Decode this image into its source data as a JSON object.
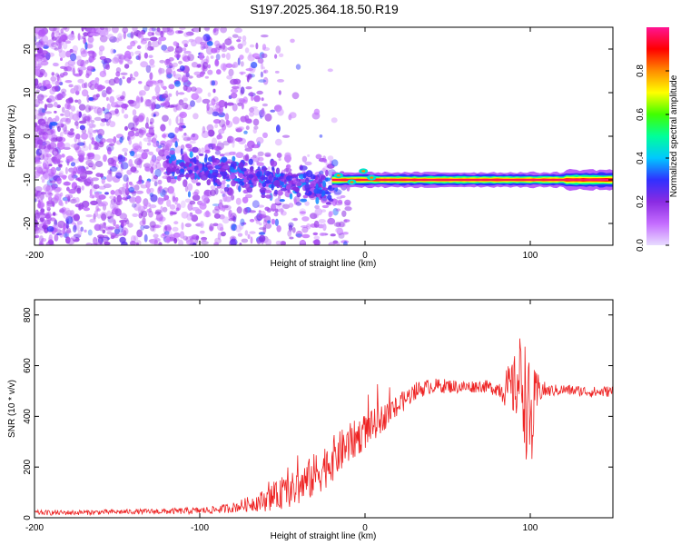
{
  "title": "S197.2025.364.18.50.R19",
  "chart_data": [
    {
      "type": "heatmap",
      "name": "spectrogram",
      "xlabel": "Height of straight line (km)",
      "ylabel": "Frequency (Hz)",
      "xlim": [
        -200,
        150
      ],
      "ylim": [
        -25,
        25
      ],
      "xticks": [
        -200,
        -100,
        0,
        100
      ],
      "xtick_labels": [
        "-200",
        "-100",
        "0",
        "100"
      ],
      "yticks": [
        -20,
        -10,
        0,
        10,
        20
      ],
      "ytick_labels": [
        "-20",
        "-10",
        "0",
        "10",
        "20"
      ],
      "colorbar": {
        "label": "Normalized spectral amplitude",
        "range": [
          0,
          1
        ],
        "ticks": [
          0.0,
          0.2,
          0.4,
          0.6,
          0.8
        ],
        "tick_labels": [
          "0.0",
          "0.2",
          "0.4",
          "0.6",
          "0.8"
        ],
        "colors": [
          "#e8dcff",
          "#c46cff",
          "#8a2be2",
          "#3030ff",
          "#00c8ff",
          "#00ff9a",
          "#40ff00",
          "#ffff00",
          "#ff8c00",
          "#ff0000",
          "#ff1493"
        ]
      },
      "features": [
        {
          "name": "carrier line",
          "x_range": [
            -20,
            150
          ],
          "frequency": -10,
          "amplitude": 1.0
        },
        {
          "name": "noise cloud",
          "x_range": [
            -200,
            -20
          ],
          "frequency_range": [
            -25,
            25
          ],
          "amplitude": 0.15
        }
      ]
    },
    {
      "type": "line",
      "name": "snr",
      "xlabel": "Height of straight line (km)",
      "ylabel": "SNR (10 * v/v)",
      "xlim": [
        -200,
        150
      ],
      "ylim": [
        0,
        860
      ],
      "xticks": [
        -200,
        -100,
        0,
        100
      ],
      "xtick_labels": [
        "-200",
        "-100",
        "0",
        "100"
      ],
      "yticks": [
        0,
        200,
        400,
        600,
        800
      ],
      "ytick_labels": [
        "0",
        "200",
        "400",
        "600",
        "800"
      ],
      "color": "#ee2222",
      "x": [
        -200,
        -180,
        -160,
        -140,
        -120,
        -100,
        -90,
        -80,
        -70,
        -60,
        -50,
        -40,
        -30,
        -20,
        -10,
        0,
        10,
        20,
        30,
        40,
        50,
        60,
        70,
        80,
        90,
        95,
        100,
        105,
        110,
        120,
        130,
        140,
        150
      ],
      "values": [
        20,
        20,
        22,
        24,
        25,
        28,
        32,
        40,
        55,
        70,
        95,
        120,
        170,
        230,
        290,
        340,
        390,
        440,
        500,
        520,
        520,
        515,
        520,
        510,
        510,
        560,
        350,
        510,
        500,
        505,
        500,
        495,
        500
      ],
      "noise_amplitude": [
        10,
        10,
        10,
        10,
        12,
        14,
        16,
        20,
        30,
        45,
        60,
        75,
        90,
        90,
        80,
        70,
        55,
        45,
        35,
        30,
        28,
        26,
        24,
        30,
        120,
        200,
        250,
        60,
        25,
        22,
        22,
        22,
        22
      ]
    }
  ]
}
